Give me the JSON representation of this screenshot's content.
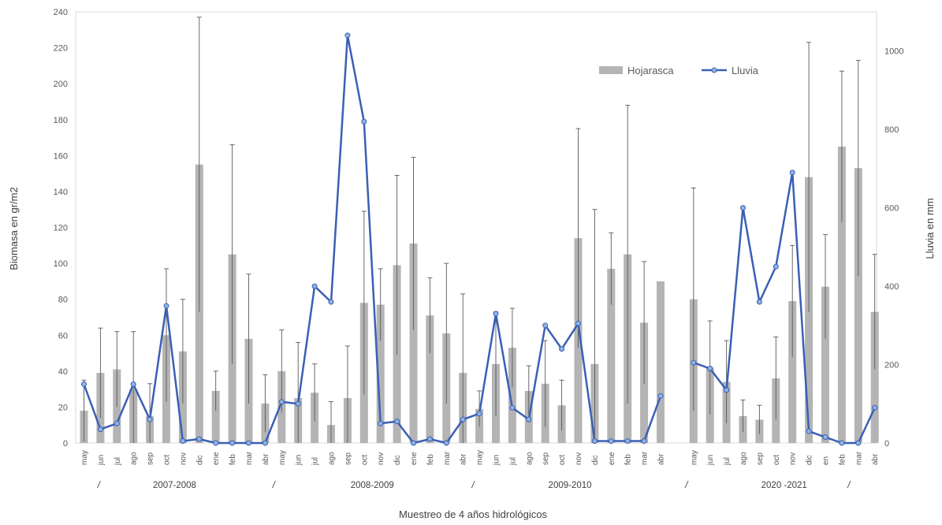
{
  "chart_data": {
    "type": "bar+line",
    "xlabel": "Muestreo de 4 años hidrológicos",
    "ylabel_left": "Biomasa en gr/m2",
    "ylabel_right": "Lluvia en mm",
    "ylim_left": [
      0,
      240
    ],
    "ylim_right": [
      0,
      1100
    ],
    "yticks_left": [
      "0",
      "20",
      "40",
      "60",
      "80",
      "100",
      "120",
      "140",
      "160",
      "180",
      "200",
      "220",
      "240"
    ],
    "yticks_right": [
      "0",
      "200",
      "400",
      "600",
      "800",
      "1000"
    ],
    "legend_position": "top-right",
    "groups": [
      {
        "label": "2007-2008",
        "months": [
          "may",
          "jun",
          "jul",
          "ago",
          "sep",
          "oct",
          "nov",
          "dic",
          "ene",
          "feb",
          "mar",
          "abr"
        ],
        "hojarasca": [
          18,
          39,
          41,
          30,
          15,
          60,
          51,
          155,
          29,
          105,
          58,
          22
        ],
        "error": [
          17,
          25,
          21,
          32,
          18,
          37,
          29,
          82,
          11,
          61,
          36,
          16
        ],
        "lluvia": [
          150,
          35,
          50,
          150,
          60,
          350,
          5,
          10,
          0,
          0,
          0,
          0
        ]
      },
      {
        "label": "2008-2009",
        "months": [
          "may",
          "jun",
          "jul",
          "ago",
          "sep",
          "oct",
          "nov",
          "dic",
          "ene",
          "feb",
          "mar",
          "abr"
        ],
        "hojarasca": [
          40,
          25,
          28,
          10,
          25,
          78,
          77,
          99,
          111,
          71,
          61,
          39
        ],
        "error": [
          23,
          31,
          16,
          13,
          29,
          51,
          20,
          50,
          48,
          21,
          39,
          44
        ],
        "lluvia": [
          105,
          100,
          400,
          360,
          1040,
          820,
          50,
          55,
          0,
          10,
          0,
          60
        ]
      },
      {
        "label": "2009-2010",
        "months": [
          "may",
          "jun",
          "jul",
          "ago",
          "sep",
          "oct",
          "nov",
          "dic",
          "ene",
          "feb",
          "mar",
          "abr"
        ],
        "hojarasca": [
          19,
          44,
          53,
          29,
          33,
          21,
          114,
          44,
          97,
          105,
          67,
          90
        ],
        "error": [
          10,
          29,
          22,
          14,
          24,
          14,
          61,
          86,
          20,
          83,
          34,
          0
        ],
        "lluvia": [
          75,
          330,
          90,
          60,
          300,
          240,
          305,
          5,
          5,
          5,
          5,
          120
        ]
      },
      {
        "label": "2020 -2021",
        "months": [
          "may",
          "jun",
          "jul",
          "ago",
          "sep",
          "oct",
          "nov",
          "dic",
          "en",
          "feb",
          "mar",
          "abr"
        ],
        "hojarasca": [
          80,
          42,
          34,
          15,
          13,
          36,
          79,
          148,
          87,
          165,
          153,
          73
        ],
        "error": [
          62,
          26,
          23,
          9,
          8,
          23,
          31,
          75,
          29,
          42,
          60,
          32
        ],
        "lluvia": [
          205,
          190,
          135,
          600,
          360,
          450,
          690,
          30,
          15,
          0,
          0,
          90
        ]
      }
    ],
    "group_separator": "/",
    "series": [
      {
        "name": "Hojarasca",
        "type": "bar",
        "color": "#b4b4b4"
      },
      {
        "name": "Lluvia",
        "type": "line",
        "color": "#3b5fb5",
        "marker_color": "#8eb4e3"
      }
    ]
  }
}
